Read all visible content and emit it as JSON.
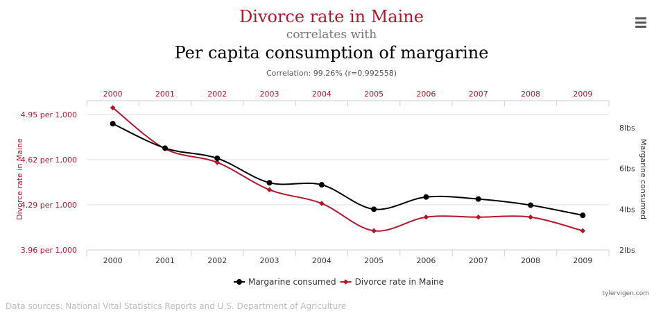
{
  "header": {
    "title": "Divorce rate in Maine",
    "connector": "correlates with",
    "subtitle": "Per capita consumption of margarine",
    "correlation": "Correlation: 99.26% (r=0.992558)"
  },
  "chart_data": {
    "type": "line",
    "x": [
      "2000",
      "2001",
      "2002",
      "2003",
      "2004",
      "2005",
      "2006",
      "2007",
      "2008",
      "2009"
    ],
    "series": [
      {
        "name": "Margarine consumed",
        "axis": "right",
        "color": "#000000",
        "marker": "circle",
        "values": [
          8.2,
          7.0,
          6.5,
          5.3,
          5.2,
          4.0,
          4.6,
          4.5,
          4.2,
          3.7
        ]
      },
      {
        "name": "Divorce rate in Maine",
        "axis": "left",
        "color": "#b5162a",
        "marker": "diamond",
        "values": [
          5.0,
          4.7,
          4.6,
          4.4,
          4.3,
          4.1,
          4.2,
          4.2,
          4.2,
          4.1
        ]
      }
    ],
    "left_axis": {
      "label": "Divorce rate in Maine",
      "ticks": [
        3.96,
        4.29,
        4.62,
        4.95
      ],
      "tick_labels": [
        "3.96 per 1,000",
        "4.29 per 1,000",
        "4.62 per 1,000",
        "4.95 per 1,000"
      ],
      "ylim": [
        3.96,
        4.95
      ],
      "color": "#b5162a"
    },
    "right_axis": {
      "label": "Margarine consumed",
      "ticks": [
        2,
        4,
        6,
        8
      ],
      "tick_labels": [
        "2lbs",
        "4lbs",
        "6lbs",
        "8lbs"
      ],
      "ylim": [
        2,
        8
      ],
      "color": "#333333"
    },
    "top_axis_color": "#b5162a",
    "grid": true,
    "legend_position": "bottom-center"
  },
  "footer": {
    "sources": "Data sources: National Vital Statistics Reports and U.S. Department of Agriculture",
    "credit": "tylervigen.com"
  }
}
